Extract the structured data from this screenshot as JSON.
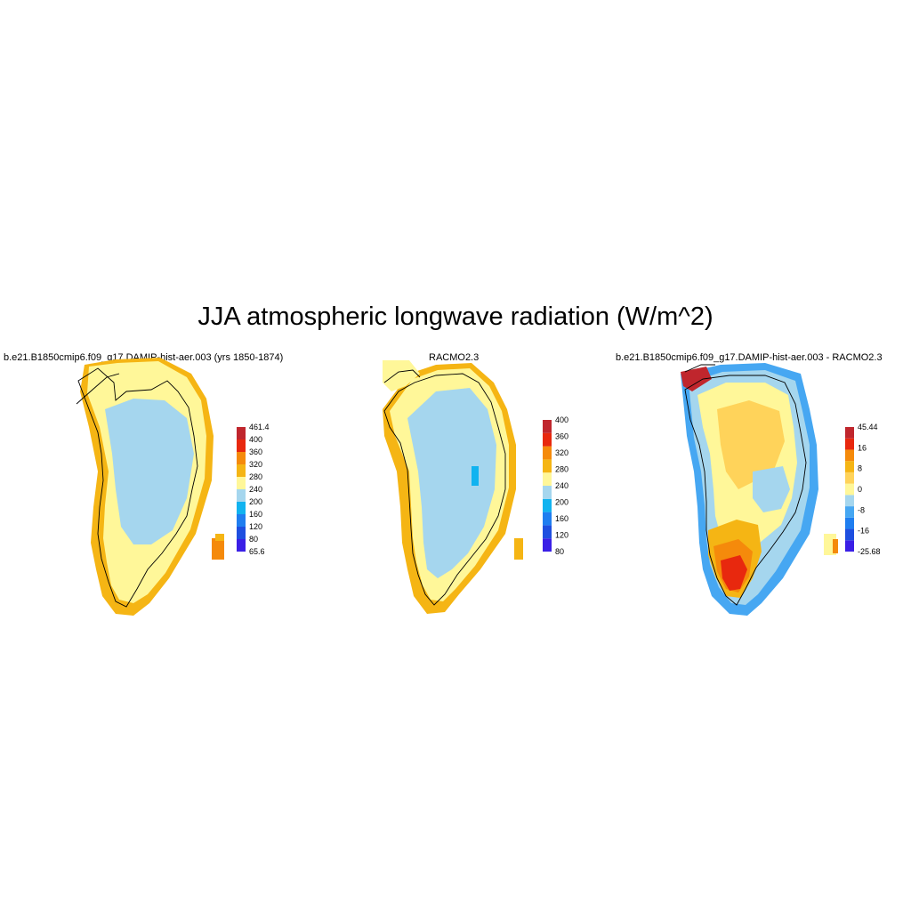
{
  "title": "JJA atmospheric longwave radiation (W/m^2)",
  "panels": [
    {
      "title": "b.e21.B1850cmip6.f09_g17.DAMIP-hist-aer.003 (yrs 1850-1874)",
      "colorbar": {
        "colors": [
          "#3a1fe6",
          "#1e4fe0",
          "#1f7ef0",
          "#11b3f0",
          "#a5d6ee",
          "#fff799",
          "#f5b514",
          "#f58a0b",
          "#e8280e",
          "#c0262d"
        ],
        "labels": [
          "461.4",
          "400",
          "360",
          "320",
          "280",
          "240",
          "200",
          "160",
          "120",
          "80",
          "65.6"
        ]
      }
    },
    {
      "title": "RACMO2.3",
      "colorbar": {
        "colors": [
          "#3a1fe6",
          "#1e4fe0",
          "#1f7ef0",
          "#11b3f0",
          "#a5d6ee",
          "#fff799",
          "#f5b514",
          "#f58a0b",
          "#e8280e",
          "#c0262d"
        ],
        "labels": [
          "400",
          "360",
          "320",
          "280",
          "240",
          "200",
          "160",
          "120",
          "80"
        ]
      }
    },
    {
      "title": "b.e21.B1850cmip6.f09_g17.DAMIP-hist-aer.003 - RACMO2.3",
      "colorbar": {
        "colors": [
          "#3a1fe6",
          "#1e4fe0",
          "#1f7ef0",
          "#46a7f2",
          "#a5d6ee",
          "#fff799",
          "#ffd35a",
          "#f5b514",
          "#f58a0b",
          "#e8280e",
          "#c0262d"
        ],
        "labels": [
          "45.44",
          "16",
          "8",
          "0",
          "-8",
          "-16",
          "-25.68"
        ]
      }
    }
  ]
}
